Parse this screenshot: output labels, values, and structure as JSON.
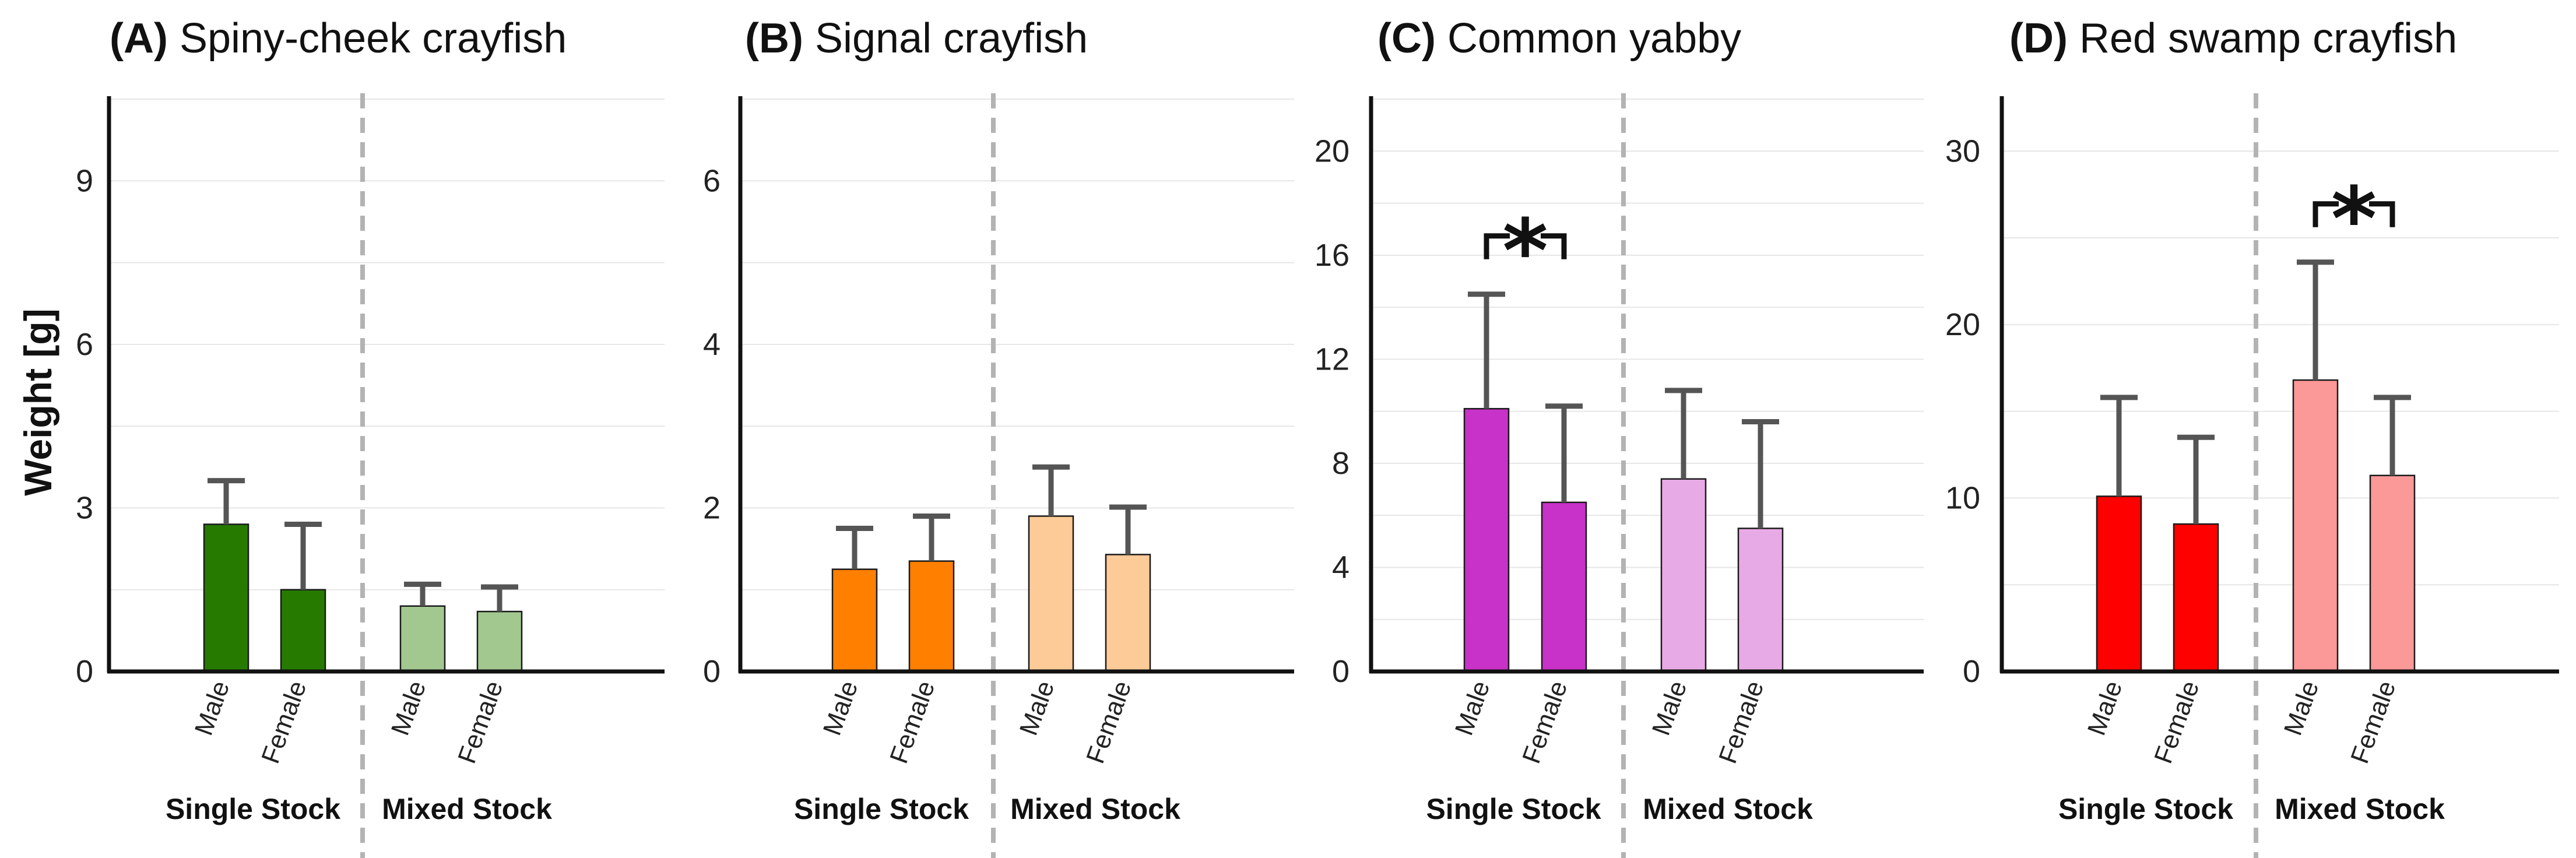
{
  "y_axis_label": "Weight [g]",
  "chart_data": [
    {
      "type": "bar",
      "panel": "(A)",
      "title": "Spiny-cheek crayfish",
      "ylim": [
        0,
        10.5
      ],
      "yticks": [
        0,
        3,
        6,
        9
      ],
      "grid": true,
      "categories": [
        "Male",
        "Female",
        "Male",
        "Female"
      ],
      "groups": [
        "Single Stock",
        "Mixed Stock"
      ],
      "values": [
        2.7,
        1.5,
        1.2,
        1.1
      ],
      "errors": [
        0.8,
        1.2,
        0.4,
        0.45
      ],
      "colors": [
        "#267a00",
        "#267a00",
        "#a2c890",
        "#a2c890"
      ],
      "significance": null
    },
    {
      "type": "bar",
      "panel": "(B)",
      "title": "Signal crayfish",
      "ylim": [
        0,
        7
      ],
      "yticks": [
        0,
        2,
        4,
        6
      ],
      "grid": true,
      "categories": [
        "Male",
        "Female",
        "Male",
        "Female"
      ],
      "groups": [
        "Single Stock",
        "Mixed Stock"
      ],
      "values": [
        1.25,
        1.35,
        1.9,
        1.43
      ],
      "errors": [
        0.5,
        0.55,
        0.6,
        0.58
      ],
      "colors": [
        "#ff7f00",
        "#ff7f00",
        "#fdcb98",
        "#fdcb98"
      ],
      "significance": null
    },
    {
      "type": "bar",
      "panel": "(C)",
      "title": "Common yabby",
      "ylim": [
        0,
        22
      ],
      "yticks": [
        0,
        4,
        8,
        12,
        16,
        20
      ],
      "grid": true,
      "categories": [
        "Male",
        "Female",
        "Male",
        "Female"
      ],
      "groups": [
        "Single Stock",
        "Mixed Stock"
      ],
      "values": [
        10.1,
        6.5,
        7.4,
        5.5
      ],
      "errors": [
        4.4,
        3.7,
        3.4,
        4.1
      ],
      "colors": [
        "#c832c8",
        "#c832c8",
        "#e8aae6",
        "#e8aae6"
      ],
      "significance": {
        "label": "*",
        "pair": [
          0,
          1
        ]
      }
    },
    {
      "type": "bar",
      "panel": "(D)",
      "title": "Red swamp crayfish",
      "ylim": [
        0,
        33
      ],
      "yticks": [
        0,
        10,
        20,
        30
      ],
      "grid": true,
      "categories": [
        "Male",
        "Female",
        "Male",
        "Female"
      ],
      "groups": [
        "Single Stock",
        "Mixed Stock"
      ],
      "values": [
        10.1,
        8.5,
        16.8,
        11.3
      ],
      "errors": [
        5.7,
        5.0,
        6.8,
        4.5
      ],
      "colors": [
        "#ff0000",
        "#ff0000",
        "#fb9898",
        "#fb9898"
      ],
      "significance": {
        "label": "*",
        "pair": [
          2,
          3
        ]
      }
    }
  ]
}
